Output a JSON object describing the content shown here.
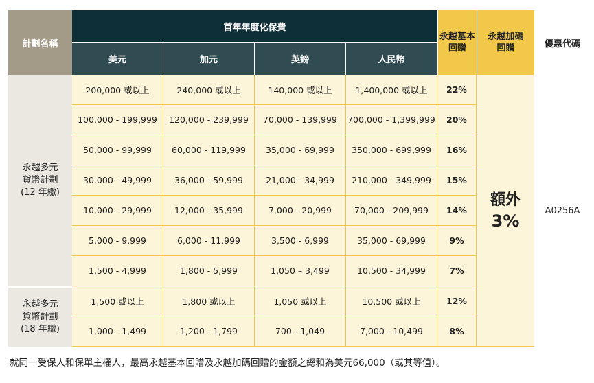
{
  "header": {
    "plan_name": "計劃名稱",
    "annual_premium": "首年年度化保費",
    "currencies": [
      "美元",
      "加元",
      "英鎊",
      "人民幣"
    ],
    "basic_rebate": [
      "永越基本",
      "回贈"
    ],
    "extra_rebate": [
      "永越加碼",
      "回贈"
    ],
    "promo_code": "優惠代碼"
  },
  "plans": [
    {
      "name": [
        "永越多元",
        "貨幣計劃",
        "(12 年繳)"
      ]
    },
    {
      "name": [
        "永越多元",
        "貨幣計劃",
        "(18 年繳)"
      ]
    }
  ],
  "rows": [
    {
      "usd": "200,000 或以上",
      "cad": "240,000 或以上",
      "gbp": "140,000 或以上",
      "rmb": "1,400,000 或以上",
      "rate": "22%"
    },
    {
      "usd": "100,000 - 199,999",
      "cad": "120,000 - 239,999",
      "gbp": "70,000 - 139,999",
      "rmb": "700,000 - 1,399,999",
      "rate": "20%"
    },
    {
      "usd": "50,000 - 99,999",
      "cad": "60,000 - 119,999",
      "gbp": "35,000 - 69,999",
      "rmb": "350,000 - 699,999",
      "rate": "16%"
    },
    {
      "usd": "30,000 - 49,999",
      "cad": "36,000 - 59,999",
      "gbp": "21,000 - 34,999",
      "rmb": "210,000 - 349,999",
      "rate": "15%"
    },
    {
      "usd": "10,000 - 29,999",
      "cad": "12,000 - 35,999",
      "gbp": "7,000 - 20,999",
      "rmb": "70,000 - 209,999",
      "rate": "14%"
    },
    {
      "usd": "5,000 - 9,999",
      "cad": "6,000 - 11,999",
      "gbp": "3,500 - 6,999",
      "rmb": "35,000 - 69,999",
      "rate": "9%"
    },
    {
      "usd": "1,500 - 4,999",
      "cad": "1,800 - 5,999",
      "gbp": "1,050 – 3,499",
      "rmb": "10,500 - 34,999",
      "rate": "7%"
    },
    {
      "usd": "1,500 或以上",
      "cad": "1,800 或以上",
      "gbp": "1,050 或以上",
      "rmb": "10,500 或以上",
      "rate": "12%"
    },
    {
      "usd": "1,000 - 1,499",
      "cad": "1,200 - 1,799",
      "gbp": "700 - 1,049",
      "rmb": "7,000 - 10,499",
      "rate": "8%"
    }
  ],
  "extra": {
    "line1": "額外",
    "line2": "3%"
  },
  "promo": "A0256A",
  "footnote": "就同一受保人和保單主權人，最高永越基本回贈及永越加碼回贈的金額之總和為美元66,000（或其等值）。",
  "colors": {
    "navy": "#0e2f37",
    "slate": "#314b53",
    "taupe": "#a39a87",
    "gold": "#f2c84b",
    "cream": "#fdf5d9",
    "grey": "#ebe8e1"
  }
}
